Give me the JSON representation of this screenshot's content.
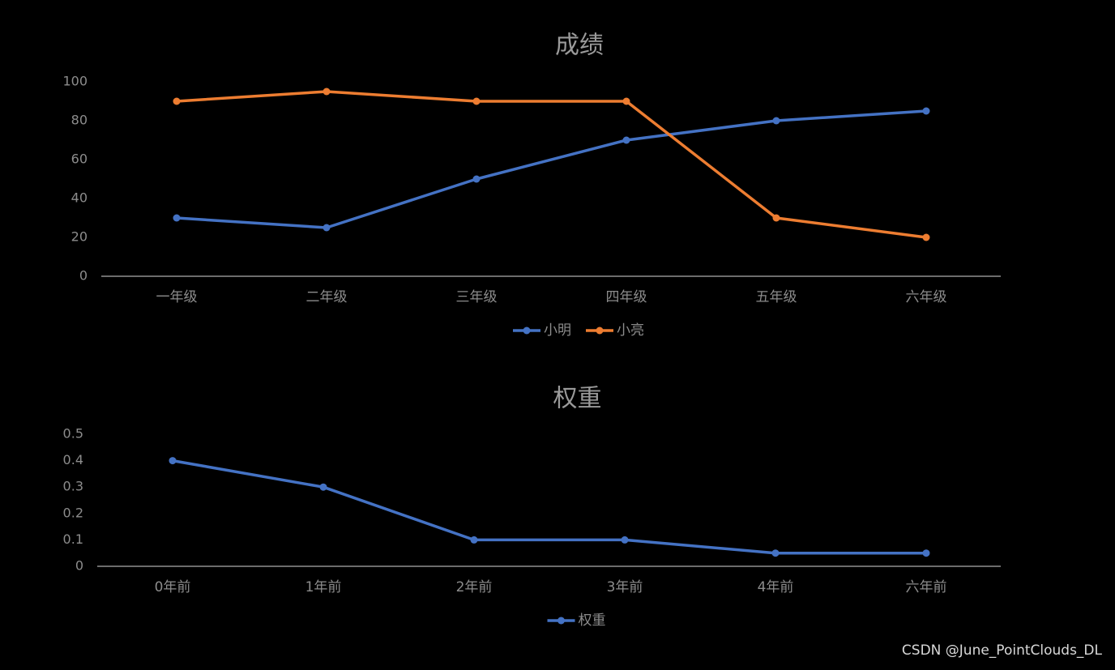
{
  "chart_data": [
    {
      "type": "line",
      "title": "成绩",
      "categories": [
        "一年级",
        "二年级",
        "三年级",
        "四年级",
        "五年级",
        "六年级"
      ],
      "series": [
        {
          "name": "小明",
          "color": "#4472c4",
          "values": [
            30,
            25,
            50,
            70,
            80,
            85
          ]
        },
        {
          "name": "小亮",
          "color": "#ed7d31",
          "values": [
            90,
            95,
            90,
            90,
            30,
            20
          ]
        }
      ],
      "ylim": [
        0,
        100
      ],
      "yticks": [
        0,
        20,
        40,
        60,
        80,
        100
      ],
      "grid": false,
      "legend": "bottom"
    },
    {
      "type": "line",
      "title": "权重",
      "categories": [
        "0年前",
        "1年前",
        "2年前",
        "3年前",
        "4年前",
        "六年前"
      ],
      "series": [
        {
          "name": "权重",
          "color": "#4472c4",
          "values": [
            0.4,
            0.3,
            0.1,
            0.1,
            0.05,
            0.05
          ]
        }
      ],
      "ylim": [
        0,
        0.5
      ],
      "yticks": [
        0,
        0.1,
        0.2,
        0.3,
        0.4,
        0.5
      ],
      "grid": false,
      "legend": "bottom"
    }
  ],
  "watermark": "CSDN @June_PointClouds_DL"
}
